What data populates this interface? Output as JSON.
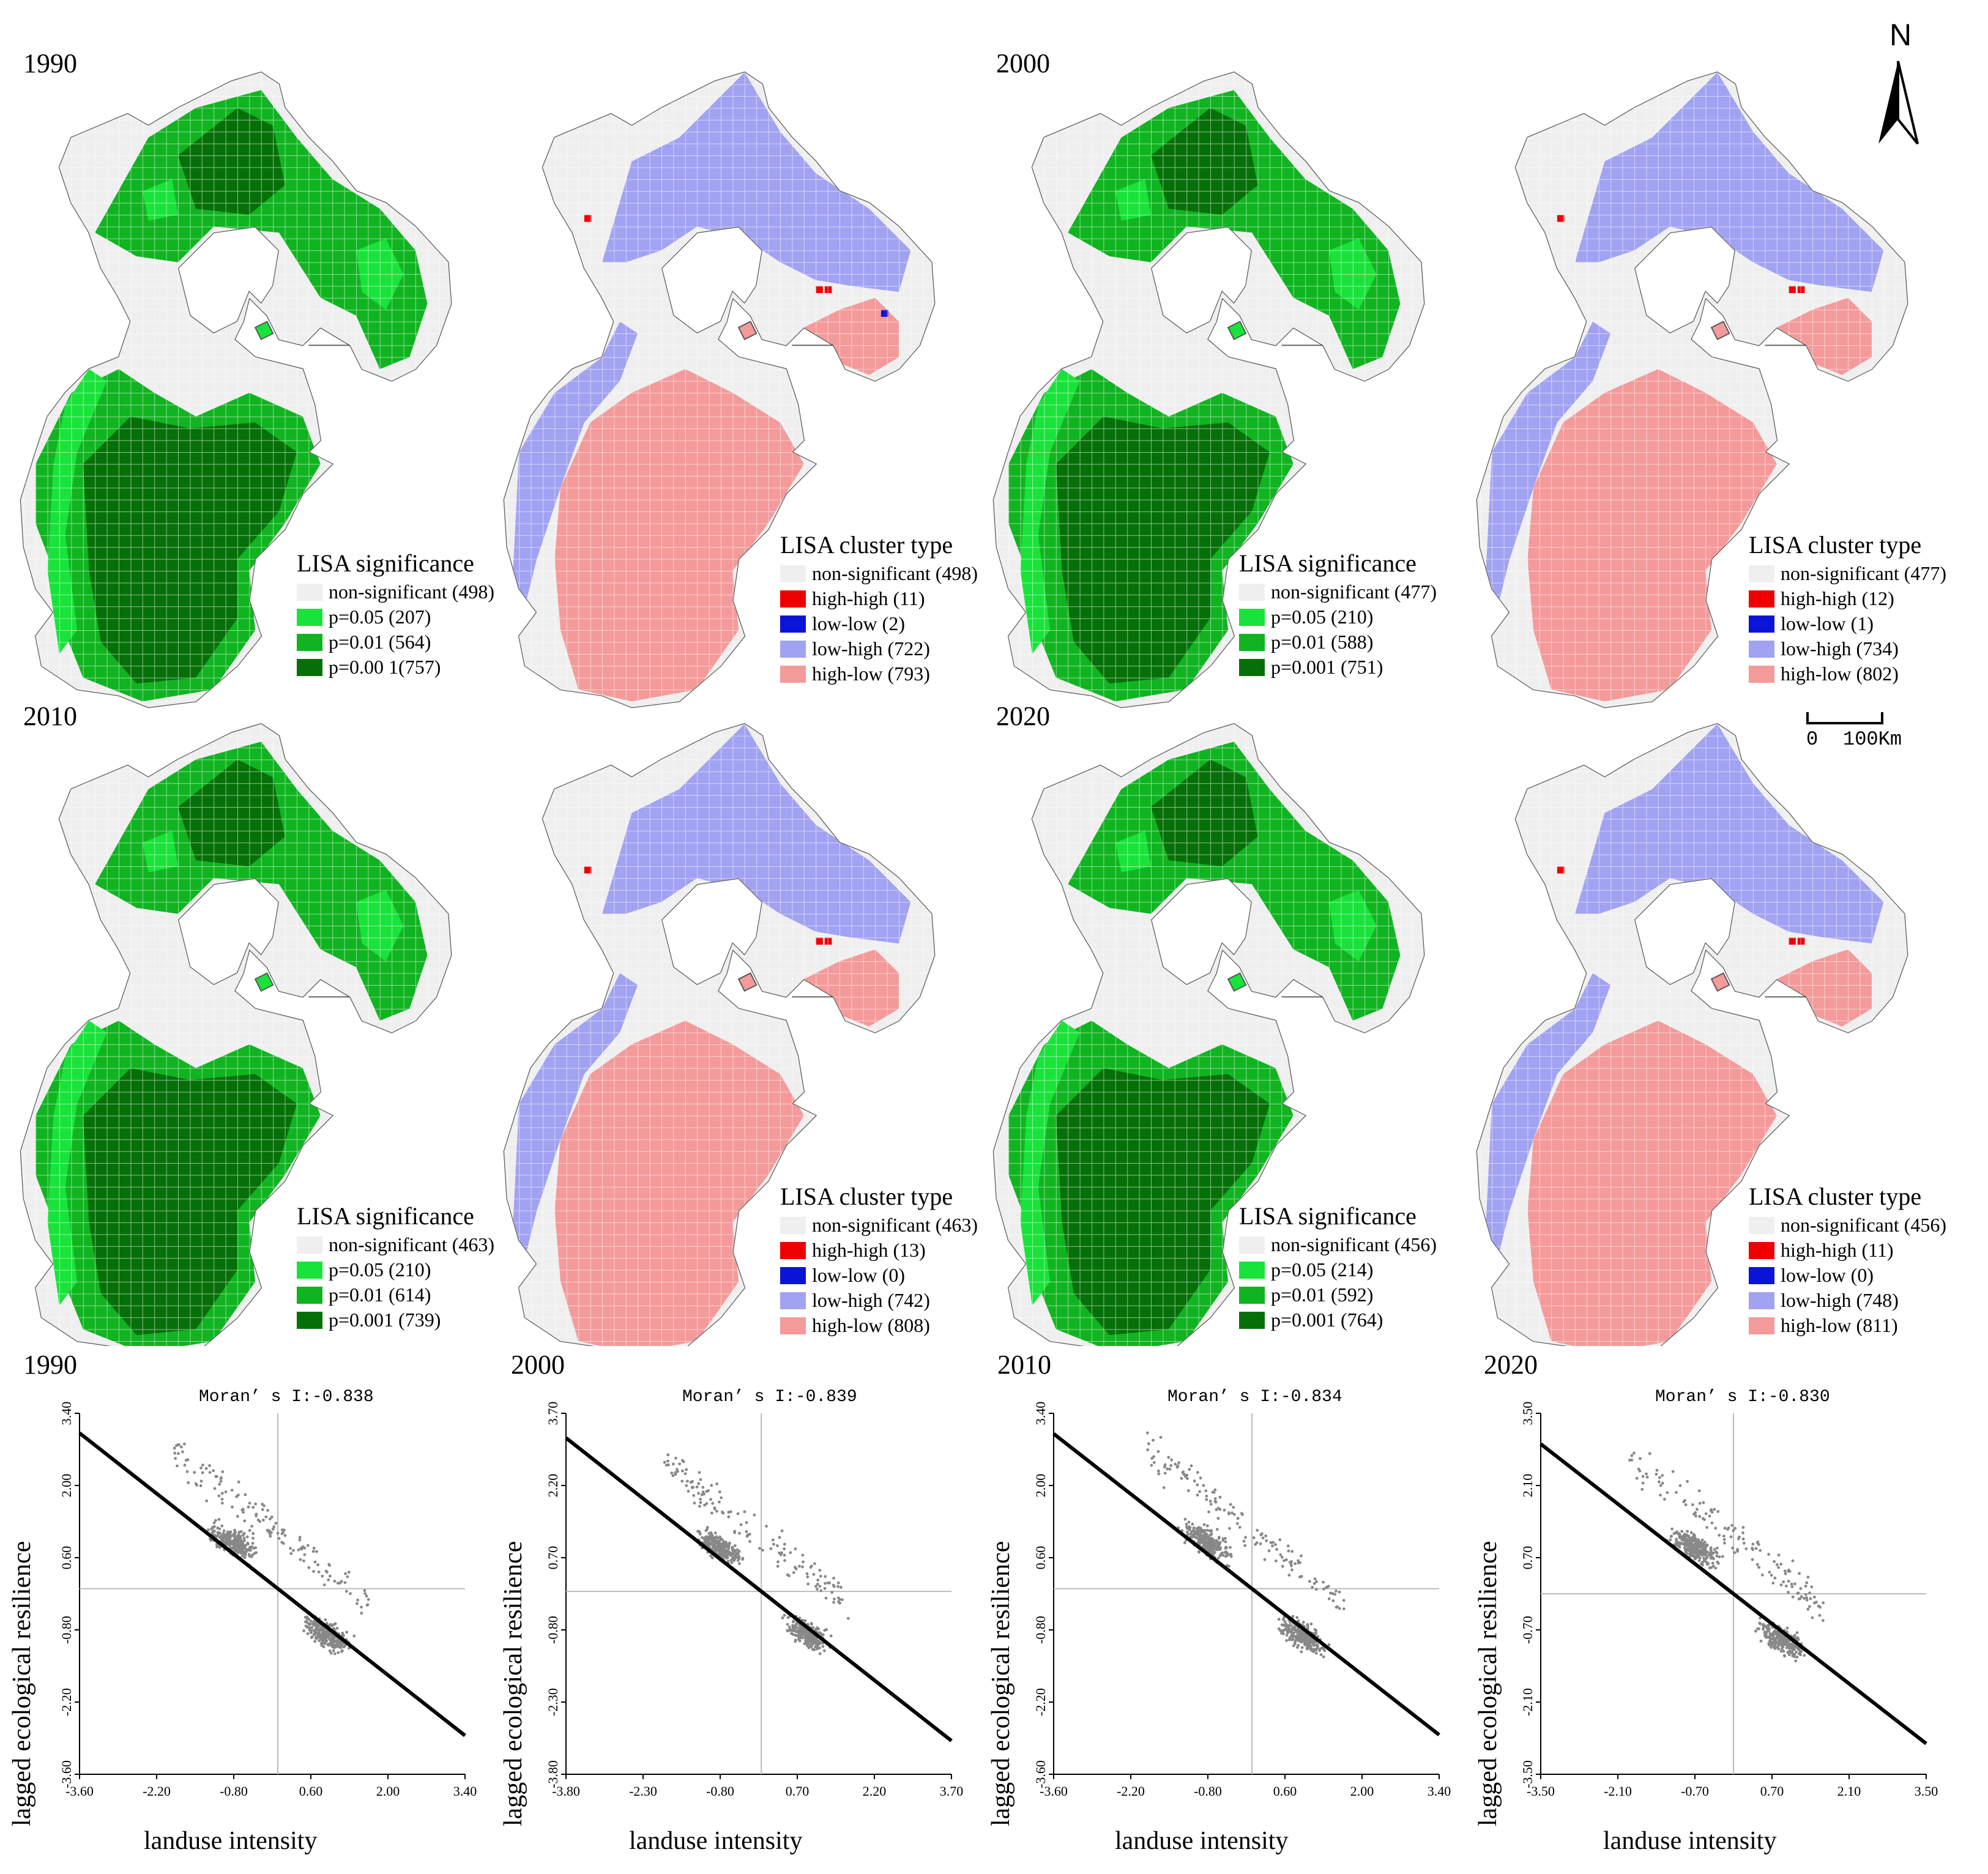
{
  "colors": {
    "nonsig": "#efefef",
    "grid": "#c8c8c8",
    "sig05": "#19e33a",
    "sig01": "#10b420",
    "sig001": "#067008",
    "hh": "#ef0000",
    "ll": "#0a14d8",
    "lh": "#a2a2f2",
    "hl": "#f49a9a",
    "scatter": "#888888"
  },
  "north": {
    "label": "N"
  },
  "scale_bar": {
    "zero": "0",
    "distance": "100Km"
  },
  "maps": [
    {
      "year": "1990",
      "significance": {
        "title": "LISA significance",
        "items": [
          "non-significant (498)",
          "p=0.05 (207)",
          "p=0.01 (564)",
          "p=0.00 1(757)"
        ]
      },
      "cluster": {
        "title": "LISA cluster type",
        "items": [
          "non-significant (498)",
          "high-high (11)",
          "low-low (2)",
          "low-high (722)",
          "high-low (793)"
        ]
      }
    },
    {
      "year": "2000",
      "significance": {
        "title": "LISA significance",
        "items": [
          "non-significant (477)",
          "p=0.05 (210)",
          "p=0.01 (588)",
          "p=0.001 (751)"
        ]
      },
      "cluster": {
        "title": "LISA cluster type",
        "items": [
          "non-significant (477)",
          "high-high (12)",
          "low-low (1)",
          "low-high (734)",
          "high-low (802)"
        ]
      }
    },
    {
      "year": "2010",
      "significance": {
        "title": "LISA significance",
        "items": [
          "non-significant (463)",
          "p=0.05 (210)",
          "p=0.01 (614)",
          "p=0.001 (739)"
        ]
      },
      "cluster": {
        "title": "LISA cluster type",
        "items": [
          "non-significant (463)",
          "high-high (13)",
          "low-low (0)",
          "low-high (742)",
          "high-low (808)"
        ]
      }
    },
    {
      "year": "2020",
      "significance": {
        "title": "LISA significance",
        "items": [
          "non-significant (456)",
          "p=0.05 (214)",
          "p=0.01 (592)",
          "p=0.001 (764)"
        ]
      },
      "cluster": {
        "title": "LISA cluster type",
        "items": [
          "non-significant (456)",
          "high-high (11)",
          "low-low (0)",
          "low-high (748)",
          "high-low (811)"
        ]
      }
    }
  ],
  "chart_data": [
    {
      "type": "scatter",
      "title": "1990",
      "subtitle": "Moran’ s I:-0.838",
      "xlabel": "landuse intensity",
      "ylabel": "lagged ecological resilience",
      "xlim": [
        -3.6,
        3.4
      ],
      "ylim": [
        -3.6,
        3.4
      ],
      "xticks": [
        "-3.60",
        "-2.20",
        "-0.80",
        "0.60",
        "2.00",
        "3.40"
      ],
      "yticks": [
        "3.40",
        "2.00",
        "0.60",
        "-0.80",
        "-2.20",
        "-3.60"
      ],
      "slope": -0.838,
      "clusters": [
        {
          "x": -0.8,
          "y": 0.9
        },
        {
          "x": 0.9,
          "y": -0.9
        }
      ]
    },
    {
      "type": "scatter",
      "title": "2000",
      "subtitle": "Moran’ s I:-0.839",
      "xlabel": "landuse intensity",
      "ylabel": "lagged ecological resilience",
      "xlim": [
        -3.8,
        3.7
      ],
      "ylim": [
        -3.8,
        3.7
      ],
      "xticks": [
        "-3.80",
        "-2.30",
        "-0.80",
        "0.70",
        "2.20",
        "3.70"
      ],
      "yticks": [
        "3.70",
        "2.20",
        "0.70",
        "-0.80",
        "-2.30",
        "-3.80"
      ],
      "slope": -0.839,
      "clusters": [
        {
          "x": -0.8,
          "y": 0.9
        },
        {
          "x": 0.9,
          "y": -0.9
        }
      ]
    },
    {
      "type": "scatter",
      "title": "2010",
      "subtitle": "Moran’ s I:-0.834",
      "xlabel": "landuse intensity",
      "ylabel": "lagged ecological resilience",
      "xlim": [
        -3.6,
        3.4
      ],
      "ylim": [
        -3.6,
        3.4
      ],
      "xticks": [
        "-3.60",
        "-2.20",
        "-0.80",
        "0.60",
        "2.00",
        "3.40"
      ],
      "yticks": [
        "3.40",
        "2.00",
        "0.60",
        "-0.80",
        "-2.20",
        "-3.60"
      ],
      "slope": -0.834,
      "clusters": [
        {
          "x": -0.8,
          "y": 0.9
        },
        {
          "x": 0.9,
          "y": -0.9
        }
      ]
    },
    {
      "type": "scatter",
      "title": "2020",
      "subtitle": "Moran’ s I:-0.830",
      "xlabel": "landuse intensity",
      "ylabel": "lagged ecological resilience",
      "xlim": [
        -3.5,
        3.5
      ],
      "ylim": [
        -3.5,
        3.5
      ],
      "xticks": [
        "-3.50",
        "-2.10",
        "-0.70",
        "0.70",
        "2.10",
        "3.50"
      ],
      "yticks": [
        "3.50",
        "2.10",
        "0.70",
        "-0.70",
        "-2.10",
        "-3.50"
      ],
      "slope": -0.83,
      "clusters": [
        {
          "x": -0.7,
          "y": 0.9
        },
        {
          "x": 0.9,
          "y": -0.9
        }
      ]
    }
  ]
}
